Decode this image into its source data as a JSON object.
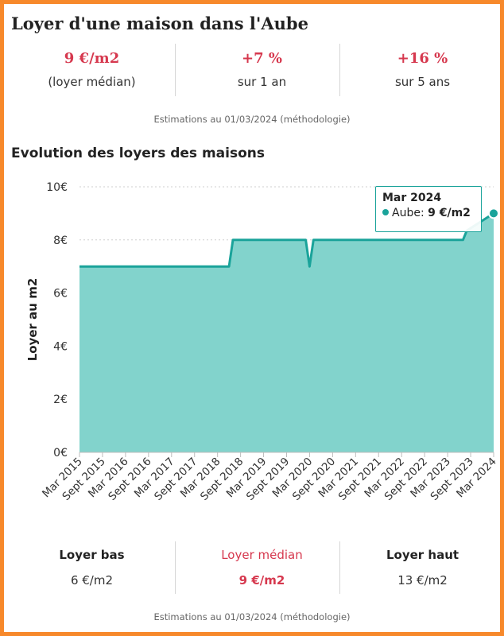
{
  "header": {
    "title": "Loyer d'une maison dans l'Aube"
  },
  "stats": [
    {
      "value": "9 €/m2",
      "label": "(loyer médian)"
    },
    {
      "value": "+7 %",
      "label": "sur 1 an"
    },
    {
      "value": "+16 %",
      "label": "sur 5 ans"
    }
  ],
  "note_top": "Estimations au 01/03/2024 (méthodologie)",
  "chart_section": {
    "title": "Evolution des loyers des maisons"
  },
  "tooltip": {
    "title": "Mar 2024",
    "series": "Aube",
    "value": "9 €/m2"
  },
  "bottom_stats": [
    {
      "label": "Loyer bas",
      "value": "6 €/m2"
    },
    {
      "label": "Loyer médian",
      "value": "9 €/m2"
    },
    {
      "label": "Loyer haut",
      "value": "13 €/m2"
    }
  ],
  "note_bottom": "Estimations au 01/03/2024 (méthodologie)",
  "colors": {
    "accent": "#d6384e",
    "series_line": "#1aa39a",
    "series_fill": "#82d3cc",
    "frame": "#f7892b"
  },
  "chart_data": {
    "type": "area",
    "title": "",
    "xlabel": "",
    "ylabel": "Loyer au m2",
    "ylim": [
      0,
      10
    ],
    "yticks": [
      0,
      2,
      4,
      6,
      8,
      10
    ],
    "ytick_labels": [
      "0€",
      "2€",
      "4€",
      "6€",
      "8€",
      "10€"
    ],
    "grid": true,
    "categories": [
      "Mar 2015",
      "Sept 2015",
      "Mar 2016",
      "Sept 2016",
      "Mar 2017",
      "Sept 2017",
      "Mar 2018",
      "Sept 2018",
      "Mar 2019",
      "Sept 2019",
      "Mar 2020",
      "Sept 2020",
      "Mar 2021",
      "Sept 2021",
      "Mar 2022",
      "Sept 2022",
      "Mar 2023",
      "Sept 2023",
      "Mar 2024"
    ],
    "series": [
      {
        "name": "Aube",
        "x": [
          "Mar 2015",
          "Jun 2018",
          "Jul 2018",
          "Feb 2020",
          "Mar 2020",
          "Apr 2020",
          "Jul 2023",
          "Aug 2023",
          "Mar 2024"
        ],
        "values": [
          7,
          7,
          8,
          8,
          7,
          8,
          8,
          8.35,
          9
        ]
      }
    ]
  }
}
